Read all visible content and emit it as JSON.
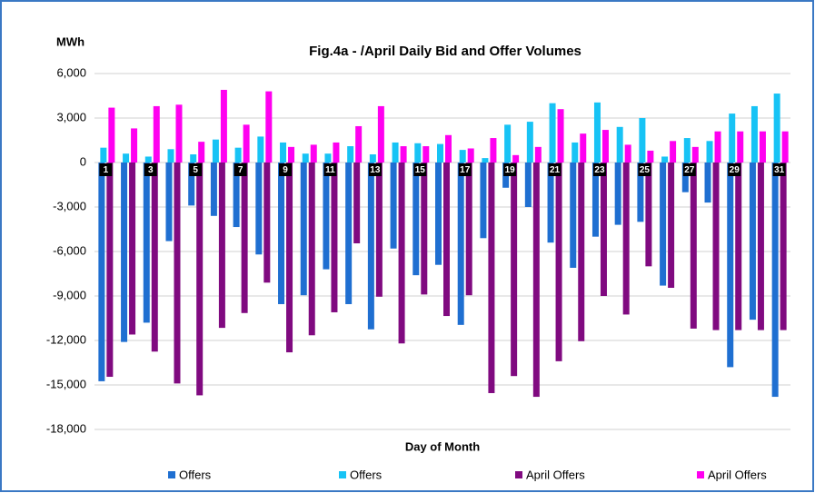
{
  "chart_data": {
    "type": "bar",
    "title": "Fig.4a - /April Daily Bid and Offer Volumes",
    "y_label": "MWh",
    "x_label": "Day of Month",
    "categories": [
      "1",
      null,
      "3",
      null,
      "5",
      null,
      "7",
      null,
      "9",
      null,
      "11",
      null,
      "13",
      null,
      "15",
      null,
      "17",
      null,
      "19",
      null,
      "21",
      null,
      "23",
      null,
      "25",
      null,
      "27",
      null,
      "29",
      null,
      "31"
    ],
    "series": [
      {
        "name": "Offers",
        "color": "#1f6fd1",
        "values": [
          -14750,
          -12100,
          -10800,
          -5300,
          -2900,
          -3600,
          -4350,
          -6200,
          -9550,
          -8950,
          -7200,
          -9550,
          -11250,
          -5800,
          -7600,
          -6900,
          -10950,
          -5100,
          -1700,
          -3000,
          -5400,
          -7100,
          -5000,
          -4200,
          -4000,
          -8300,
          -2000,
          -2700,
          -13800,
          -10600,
          -15800
        ]
      },
      {
        "name": "Offers",
        "color": "#17c3f5",
        "values": [
          1000,
          600,
          400,
          900,
          550,
          1550,
          1000,
          1750,
          1350,
          600,
          600,
          1100,
          550,
          1350,
          1300,
          1250,
          850,
          300,
          2550,
          2750,
          4000,
          1350,
          4050,
          2400,
          3000,
          400,
          1650,
          1450,
          3300,
          3800,
          4650
        ]
      },
      {
        "name": "April Offers",
        "color": "#800a80",
        "values": [
          -14450,
          -11600,
          -12750,
          -14900,
          -15700,
          -11150,
          -10150,
          -8100,
          -12800,
          -11650,
          -10100,
          -5450,
          -9050,
          -12200,
          -8900,
          -10350,
          -8950,
          -15550,
          -14400,
          -15800,
          -13400,
          -12050,
          -9000,
          -10250,
          -7000,
          -8450,
          -11200,
          -11300,
          -11300,
          -11300,
          -11300
        ]
      },
      {
        "name": "April Offers",
        "color": "#ff00f0",
        "values": [
          3700,
          2300,
          3800,
          3900,
          1400,
          4900,
          2550,
          4800,
          1050,
          1200,
          1350,
          2450,
          3800,
          1100,
          1100,
          1850,
          950,
          1650,
          500,
          1050,
          3600,
          1950,
          2200,
          1200,
          800,
          1450,
          1050,
          2100,
          2100,
          2100,
          2100
        ]
      }
    ],
    "ylim": [
      -18000,
      6000
    ],
    "yticks": [
      {
        "value": -18000,
        "label": "-18,000"
      },
      {
        "value": -15000,
        "label": "-15,000"
      },
      {
        "value": -12000,
        "label": "-12,000"
      },
      {
        "value": -9000,
        "label": "-9,000"
      },
      {
        "value": -6000,
        "label": "-6,000"
      },
      {
        "value": -3000,
        "label": "-3,000"
      },
      0,
      {
        "value": 3000,
        "label": "3,000"
      },
      {
        "value": 6000,
        "label": "6,000"
      }
    ],
    "grid": true,
    "legend": "bottom"
  }
}
